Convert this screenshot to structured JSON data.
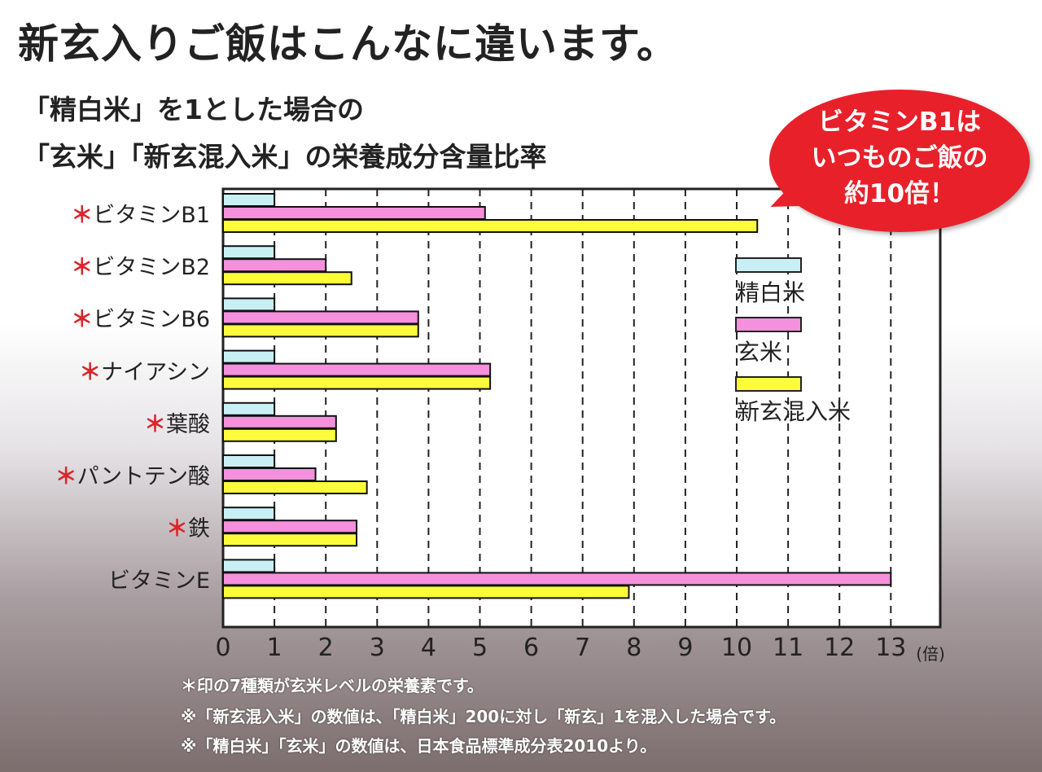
{
  "title": "新玄入りご飯はこんなに違います。",
  "subtitle1": "「精白米」を1とした場合の",
  "subtitle2": "「玄米」「新玄混入米」の栄養成分含量比率",
  "bubble": {
    "line1": "ビタミンB1は",
    "line2": "いつものご飯の",
    "line3": "約10倍！"
  },
  "colors": {
    "精白米": "#c8f0f4",
    "玄米": "#f490dc",
    "新玄混入米": "#fcfc3c",
    "accent": "#e8202a"
  },
  "notes": [
    "＊印の7種類が玄米レベルの栄養素です。",
    "※「新玄混入米」の数値は、「精白米」200に対し「新玄」1を混入した場合です。",
    "※「精白米」「玄米」の数値は、日本食品標準成分表2010より。"
  ],
  "chart_data": {
    "type": "bar",
    "orientation": "horizontal",
    "title": "「玄米」「新玄混入米」の栄養成分含量比率",
    "xlabel": "(倍)",
    "xlim": [
      0,
      13
    ],
    "xticks": [
      "0",
      "1",
      "2",
      "3",
      "4",
      "5",
      "6",
      "7",
      "8",
      "9",
      "10",
      "11",
      "12",
      "13"
    ],
    "grid": true,
    "legend_position": "right",
    "categories": [
      "ビタミンB1",
      "ビタミンB2",
      "ビタミンB6",
      "ナイアシン",
      "葉酸",
      "パントテン酸",
      "鉄",
      "ビタミンE"
    ],
    "marked": [
      true,
      true,
      true,
      true,
      true,
      true,
      true,
      false
    ],
    "marker": "＊",
    "series": [
      {
        "name": "精白米",
        "values": [
          1,
          1,
          1,
          1,
          1,
          1,
          1,
          1
        ]
      },
      {
        "name": "玄米",
        "values": [
          5.1,
          2.0,
          3.8,
          5.2,
          2.2,
          1.8,
          2.6,
          13.0
        ]
      },
      {
        "name": "新玄混入米",
        "values": [
          10.4,
          2.5,
          3.8,
          5.2,
          2.2,
          2.8,
          2.6,
          7.9
        ]
      }
    ]
  }
}
